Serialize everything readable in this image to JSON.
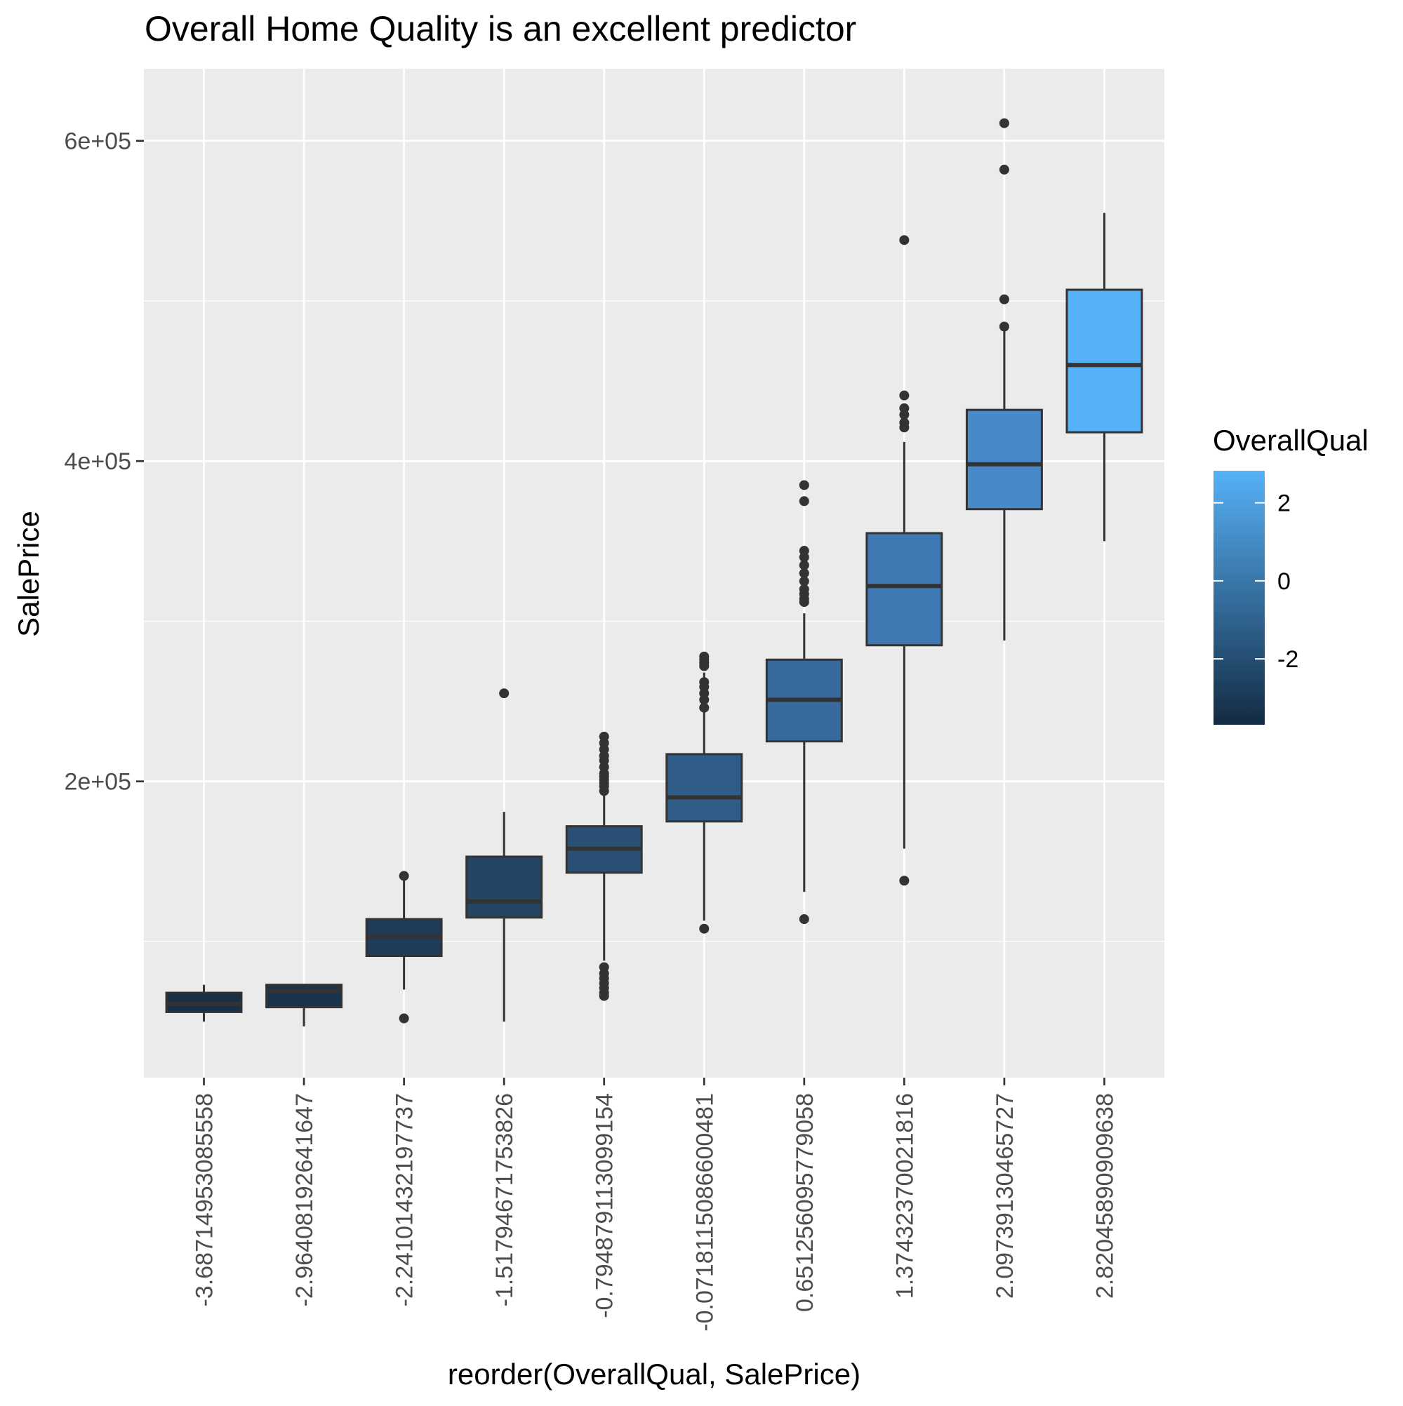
{
  "chart_data": {
    "type": "boxplot",
    "title": "Overall Home Quality is an excellent predictor",
    "xlabel": "reorder(OverallQual, SalePrice)",
    "ylabel": "SalePrice",
    "ylim": [
      15000,
      645000
    ],
    "y_ticks": [
      200000,
      400000,
      600000
    ],
    "y_tick_labels": [
      "2e+05",
      "4e+05",
      "6e+05"
    ],
    "y_minor_ticks": [
      100000,
      300000,
      500000
    ],
    "grid": true,
    "background": "#EBEBEB",
    "legend": {
      "title": "OverallQual",
      "position": "right",
      "type": "colorbar",
      "range": [
        -3.6871495308555,
        2.82045890909638
      ],
      "ticks": [
        2,
        0,
        -2
      ],
      "tick_labels": [
        "2",
        "0",
        "-2"
      ],
      "low_color": "#132B43",
      "high_color": "#56B1F7"
    },
    "categories": [
      "-3.68714953085558",
      "-2.96408192641647",
      "-2.24101432197737",
      "-1.51794671753826",
      "-0.794879113099154",
      "-0.0718115086600481",
      "0.651256095779058",
      "1.37432370021816",
      "2.09739130465727",
      "2.82045890909638"
    ],
    "boxes": [
      {
        "q1": 56000,
        "median": 61000,
        "q3": 68000,
        "lower": 50000,
        "upper": 73000,
        "outliers": [],
        "fill": "#182F48"
      },
      {
        "q1": 59000,
        "median": 69000,
        "q3": 73000,
        "lower": 47000,
        "upper": 73000,
        "outliers": [],
        "fill": "#1B344E"
      },
      {
        "q1": 91000,
        "median": 103000,
        "q3": 114000,
        "lower": 70000,
        "upper": 142000,
        "outliers": [
          141000,
          52000
        ],
        "fill": "#1F3B58"
      },
      {
        "q1": 115000,
        "median": 125000,
        "q3": 153000,
        "lower": 50000,
        "upper": 181000,
        "outliers": [
          255000
        ],
        "fill": "#254565"
      },
      {
        "q1": 143000,
        "median": 158000,
        "q3": 172000,
        "lower": 88000,
        "upper": 226000,
        "outliers": [
          228000,
          224000,
          220000,
          216000,
          213000,
          209000,
          205000,
          203000,
          201000,
          199000,
          197000,
          194000,
          84000,
          80000,
          77000,
          74000,
          71000,
          68000,
          66000
        ],
        "fill": "#2A5075"
      },
      {
        "q1": 175000,
        "median": 190000,
        "q3": 217000,
        "lower": 113000,
        "upper": 268000,
        "outliers": [
          278000,
          276000,
          274000,
          272000,
          262000,
          259000,
          255000,
          251000,
          246000,
          108000
        ],
        "fill": "#305C88"
      },
      {
        "q1": 225000,
        "median": 251000,
        "q3": 276000,
        "lower": 131000,
        "upper": 305000,
        "outliers": [
          385000,
          375000,
          344000,
          340000,
          335000,
          330000,
          325000,
          320000,
          317000,
          314000,
          312000,
          114000
        ],
        "fill": "#37699C"
      },
      {
        "q1": 285000,
        "median": 322000,
        "q3": 355000,
        "lower": 158000,
        "upper": 412000,
        "outliers": [
          538000,
          441000,
          433000,
          429000,
          424000,
          421000,
          138000
        ],
        "fill": "#3F79B3"
      },
      {
        "q1": 370000,
        "median": 398000,
        "q3": 432000,
        "lower": 288000,
        "upper": 483000,
        "outliers": [
          611000,
          582000,
          501000,
          484000
        ],
        "fill": "#468ACA"
      },
      {
        "q1": 418000,
        "median": 460000,
        "q3": 507000,
        "lower": 350000,
        "upper": 555000,
        "outliers": [],
        "fill": "#56B1F7"
      }
    ]
  }
}
